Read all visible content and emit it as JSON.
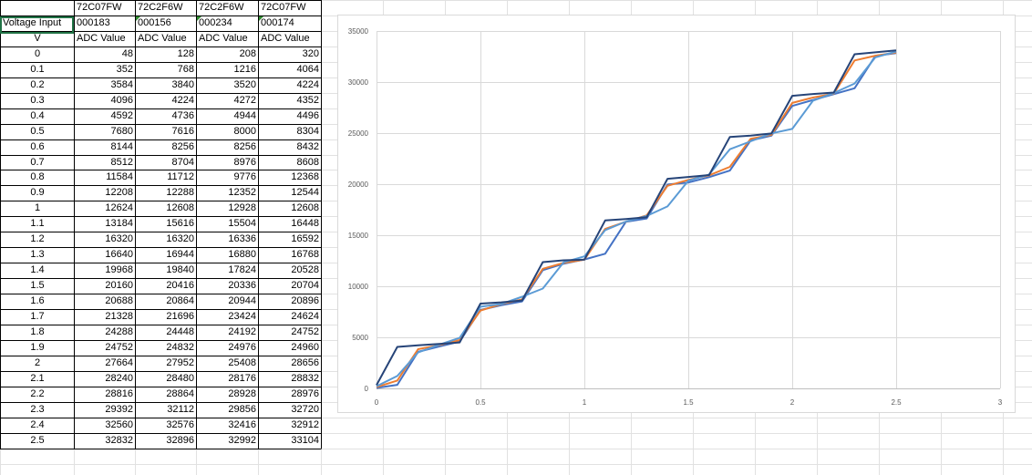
{
  "sheet": {
    "header_ids": [
      "72C07FW",
      "72C2F6W",
      "72C2F6W",
      "72C07FW"
    ],
    "serials_label": "Voltage Input",
    "serials": [
      "000183",
      "000156",
      "000234",
      "000174"
    ],
    "unit_label": "V",
    "col_header": "ADC Value",
    "rows": [
      {
        "v": "0",
        "a": "48",
        "b": "128",
        "c": "208",
        "d": "320"
      },
      {
        "v": "0.1",
        "a": "352",
        "b": "768",
        "c": "1216",
        "d": "4064"
      },
      {
        "v": "0.2",
        "a": "3584",
        "b": "3840",
        "c": "3520",
        "d": "4224"
      },
      {
        "v": "0.3",
        "a": "4096",
        "b": "4224",
        "c": "4272",
        "d": "4352"
      },
      {
        "v": "0.4",
        "a": "4592",
        "b": "4736",
        "c": "4944",
        "d": "4496"
      },
      {
        "v": "0.5",
        "a": "7680",
        "b": "7616",
        "c": "8000",
        "d": "8304"
      },
      {
        "v": "0.6",
        "a": "8144",
        "b": "8256",
        "c": "8256",
        "d": "8432"
      },
      {
        "v": "0.7",
        "a": "8512",
        "b": "8704",
        "c": "8976",
        "d": "8608"
      },
      {
        "v": "0.8",
        "a": "11584",
        "b": "11712",
        "c": "9776",
        "d": "12368"
      },
      {
        "v": "0.9",
        "a": "12208",
        "b": "12288",
        "c": "12352",
        "d": "12544"
      },
      {
        "v": "1",
        "a": "12624",
        "b": "12608",
        "c": "12928",
        "d": "12608"
      },
      {
        "v": "1.1",
        "a": "13184",
        "b": "15616",
        "c": "15504",
        "d": "16448"
      },
      {
        "v": "1.2",
        "a": "16320",
        "b": "16320",
        "c": "16336",
        "d": "16592"
      },
      {
        "v": "1.3",
        "a": "16640",
        "b": "16944",
        "c": "16880",
        "d": "16768"
      },
      {
        "v": "1.4",
        "a": "19968",
        "b": "19840",
        "c": "17824",
        "d": "20528"
      },
      {
        "v": "1.5",
        "a": "20160",
        "b": "20416",
        "c": "20336",
        "d": "20704"
      },
      {
        "v": "1.6",
        "a": "20688",
        "b": "20864",
        "c": "20944",
        "d": "20896"
      },
      {
        "v": "1.7",
        "a": "21328",
        "b": "21696",
        "c": "23424",
        "d": "24624"
      },
      {
        "v": "1.8",
        "a": "24288",
        "b": "24448",
        "c": "24192",
        "d": "24752"
      },
      {
        "v": "1.9",
        "a": "24752",
        "b": "24832",
        "c": "24976",
        "d": "24960"
      },
      {
        "v": "2",
        "a": "27664",
        "b": "27952",
        "c": "25408",
        "d": "28656"
      },
      {
        "v": "2.1",
        "a": "28240",
        "b": "28480",
        "c": "28176",
        "d": "28832"
      },
      {
        "v": "2.2",
        "a": "28816",
        "b": "28864",
        "c": "28928",
        "d": "28976"
      },
      {
        "v": "2.3",
        "a": "29392",
        "b": "32112",
        "c": "29856",
        "d": "32720"
      },
      {
        "v": "2.4",
        "a": "32560",
        "b": "32576",
        "c": "32416",
        "d": "32912"
      },
      {
        "v": "2.5",
        "a": "32832",
        "b": "32896",
        "c": "32992",
        "d": "33104"
      }
    ]
  },
  "chart_data": {
    "type": "line",
    "title": "",
    "xlabel": "",
    "ylabel": "",
    "xlim": [
      0,
      3
    ],
    "ylim": [
      0,
      35000
    ],
    "x_ticks": [
      0,
      0.5,
      1,
      1.5,
      2,
      2.5,
      3
    ],
    "y_ticks": [
      0,
      5000,
      10000,
      15000,
      20000,
      25000,
      30000,
      35000
    ],
    "grid": true,
    "legend": "none",
    "x": [
      0,
      0.1,
      0.2,
      0.3,
      0.4,
      0.5,
      0.6,
      0.7,
      0.8,
      0.9,
      1,
      1.1,
      1.2,
      1.3,
      1.4,
      1.5,
      1.6,
      1.7,
      1.8,
      1.9,
      2,
      2.1,
      2.2,
      2.3,
      2.4,
      2.5
    ],
    "series": [
      {
        "color": "#4472c4",
        "values": [
          48,
          352,
          3584,
          4096,
          4592,
          7680,
          8144,
          8512,
          11584,
          12208,
          12624,
          13184,
          16320,
          16640,
          19968,
          20160,
          20688,
          21328,
          24288,
          24752,
          27664,
          28240,
          28816,
          29392,
          32560,
          32832
        ]
      },
      {
        "color": "#ed7d31",
        "values": [
          128,
          768,
          3840,
          4224,
          4736,
          7616,
          8256,
          8704,
          11712,
          12288,
          12608,
          15616,
          16320,
          16944,
          19840,
          20416,
          20864,
          21696,
          24448,
          24832,
          27952,
          28480,
          28864,
          32112,
          32576,
          32896
        ]
      },
      {
        "color": "#5b9bd5",
        "values": [
          208,
          1216,
          3520,
          4272,
          4944,
          8000,
          8256,
          8976,
          9776,
          12352,
          12928,
          15504,
          16336,
          16880,
          17824,
          20336,
          20944,
          23424,
          24192,
          24976,
          25408,
          28176,
          28928,
          29856,
          32416,
          32992
        ]
      },
      {
        "color": "#264478",
        "values": [
          320,
          4064,
          4224,
          4352,
          4496,
          8304,
          8432,
          8608,
          12368,
          12544,
          12608,
          16448,
          16592,
          16768,
          20528,
          20704,
          20896,
          24624,
          24752,
          24960,
          28656,
          28832,
          28976,
          32720,
          32912,
          33104
        ]
      }
    ]
  }
}
